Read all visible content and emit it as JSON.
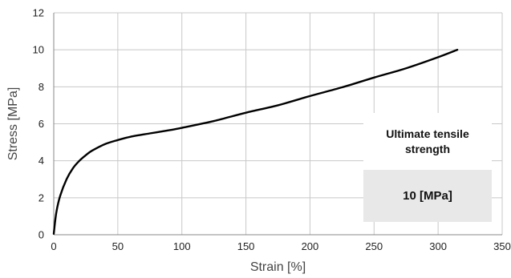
{
  "chart_data": {
    "type": "line",
    "xlabel": "Strain [%]",
    "ylabel": "Stress  [MPa]",
    "xlim": [
      0,
      350
    ],
    "ylim": [
      0,
      12
    ],
    "x_ticks": [
      0,
      50,
      100,
      150,
      200,
      250,
      300,
      350
    ],
    "y_ticks": [
      0,
      2,
      4,
      6,
      8,
      10,
      12
    ],
    "grid": true,
    "series": [
      {
        "color": "#000000",
        "points": [
          [
            0,
            0.05
          ],
          [
            2,
            1.2
          ],
          [
            5,
            2.1
          ],
          [
            10,
            3.0
          ],
          [
            15,
            3.6
          ],
          [
            20,
            4.0
          ],
          [
            25,
            4.3
          ],
          [
            30,
            4.55
          ],
          [
            40,
            4.9
          ],
          [
            50,
            5.12
          ],
          [
            60,
            5.3
          ],
          [
            75,
            5.48
          ],
          [
            90,
            5.65
          ],
          [
            100,
            5.78
          ],
          [
            125,
            6.15
          ],
          [
            150,
            6.6
          ],
          [
            175,
            7.0
          ],
          [
            200,
            7.5
          ],
          [
            225,
            7.97
          ],
          [
            250,
            8.5
          ],
          [
            275,
            9.0
          ],
          [
            300,
            9.6
          ],
          [
            315,
            10.0
          ]
        ]
      }
    ]
  },
  "info_box": {
    "title": "Ultimate tensile strength",
    "value": "10 [MPa]",
    "background": "#e8e8e8"
  },
  "colors": {
    "grid": "#c8c8c8",
    "axis": "#888888",
    "line": "#000000"
  }
}
